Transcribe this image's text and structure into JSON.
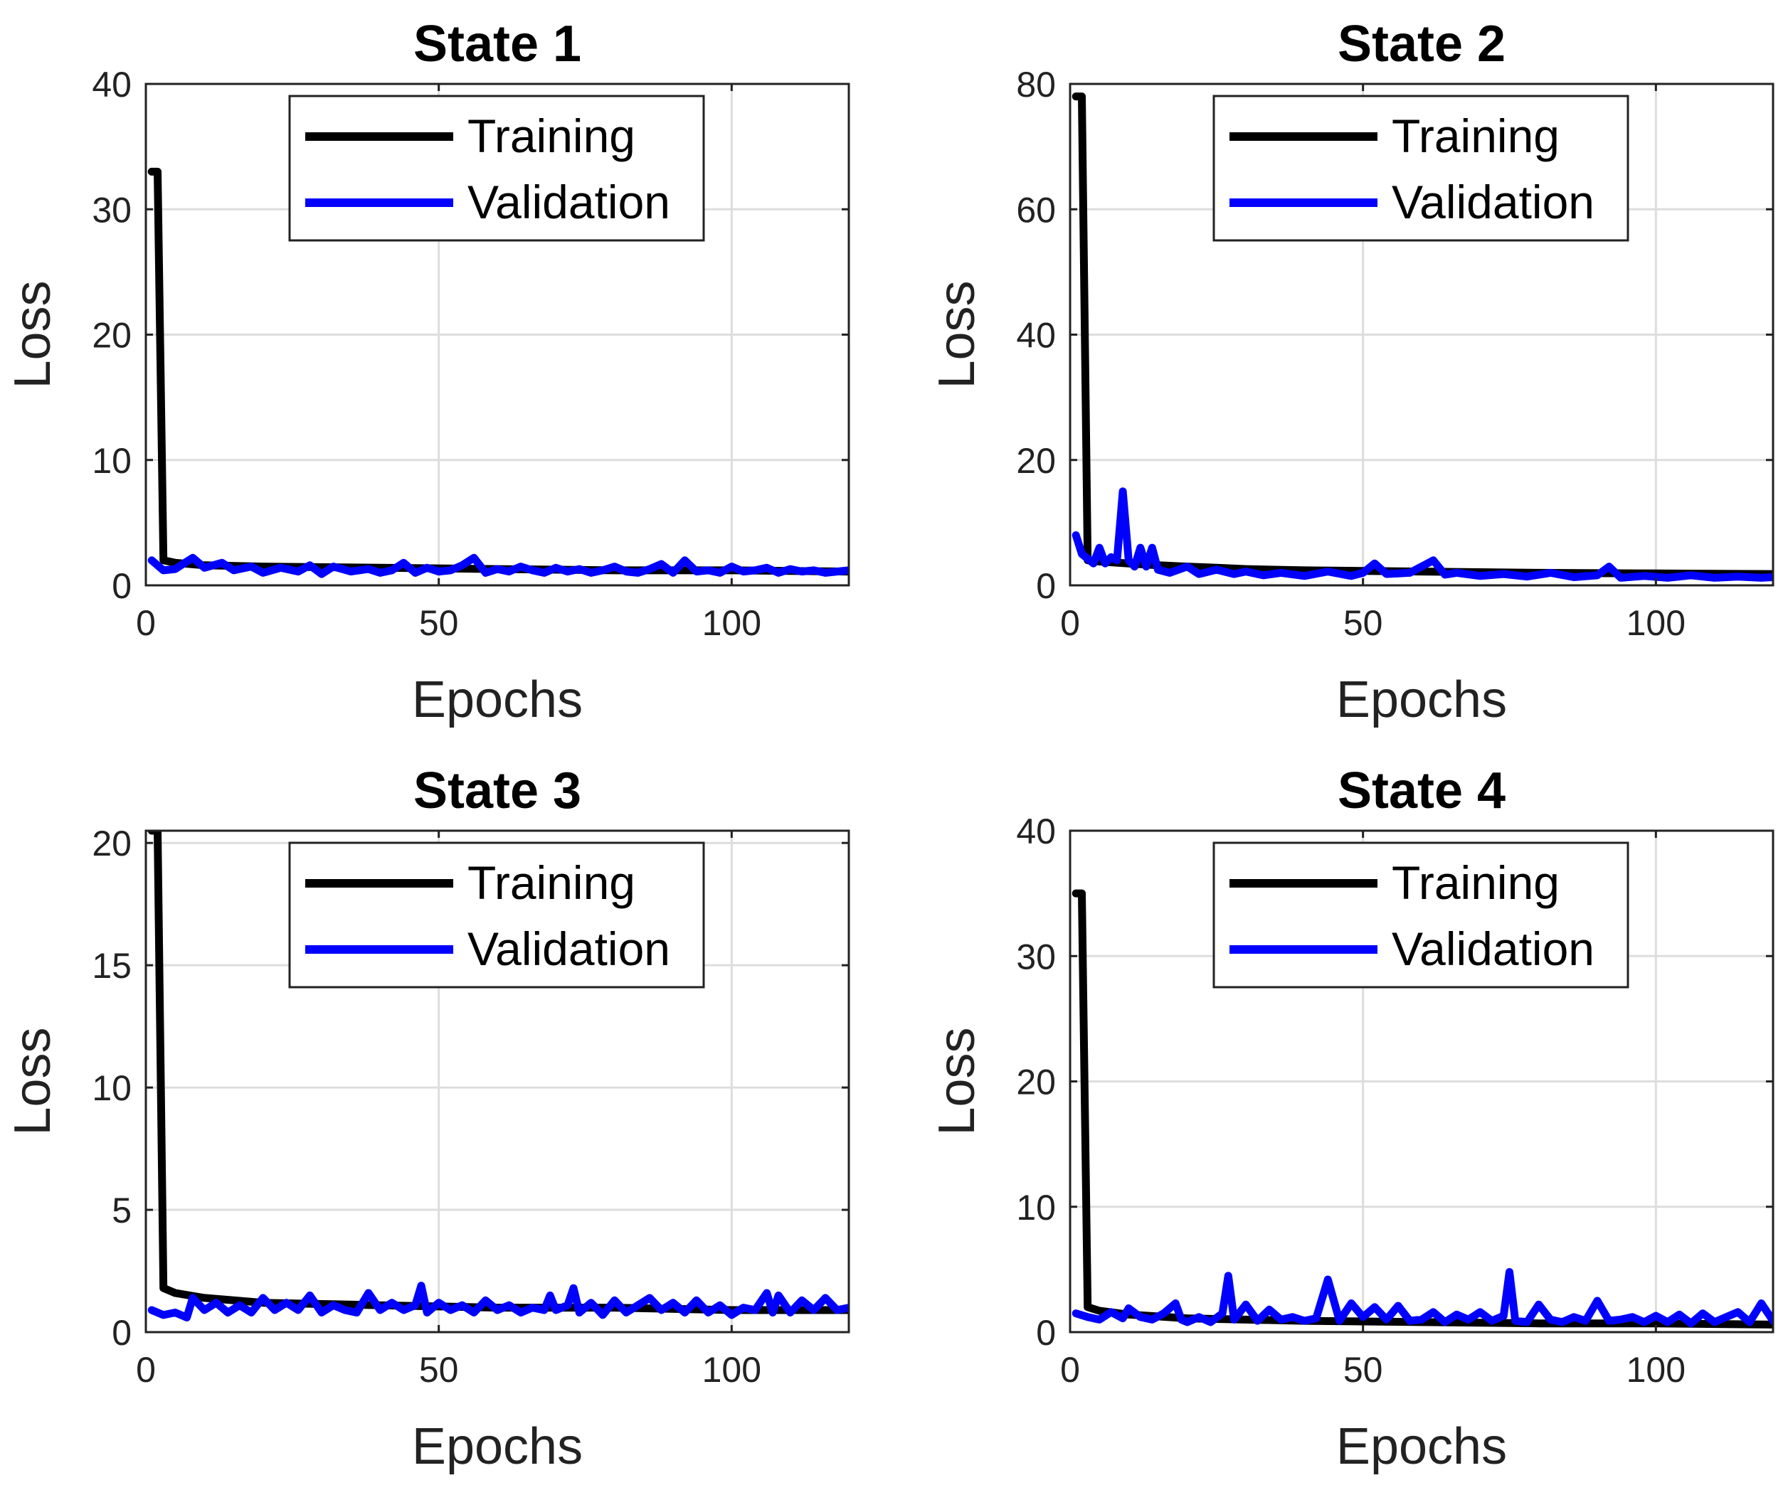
{
  "figure": {
    "xlabel": "Epochs",
    "ylabel": "Loss"
  },
  "colors": {
    "training": "#000000",
    "validation": "#0000ff",
    "grid": "#dddddd",
    "axis": "#222222"
  },
  "chart_data": [
    {
      "type": "line",
      "title": "State 1",
      "xlabel": "Epochs",
      "ylabel": "Loss",
      "xlim": [
        0,
        120
      ],
      "ylim": [
        0,
        40
      ],
      "xticks": [
        0,
        50,
        100
      ],
      "yticks": [
        0,
        10,
        20,
        30,
        40
      ],
      "grid": true,
      "legend": [
        "Training",
        "Validation"
      ],
      "legend_position": "top-right",
      "series": [
        {
          "name": "Training",
          "color": "#000000",
          "x": [
            1,
            2,
            3,
            5,
            10,
            20,
            40,
            60,
            80,
            100,
            120
          ],
          "y": [
            33,
            33,
            2.0,
            1.8,
            1.6,
            1.5,
            1.4,
            1.3,
            1.2,
            1.2,
            1.1
          ]
        },
        {
          "name": "Validation",
          "color": "#0000ff",
          "x": [
            1,
            3,
            5,
            8,
            10,
            13,
            15,
            18,
            20,
            23,
            26,
            28,
            30,
            32,
            35,
            38,
            40,
            42,
            44,
            46,
            48,
            50,
            52,
            54,
            56,
            58,
            60,
            62,
            64,
            66,
            68,
            70,
            72,
            74,
            76,
            78,
            80,
            82,
            84,
            86,
            88,
            90,
            92,
            94,
            96,
            98,
            100,
            102,
            104,
            106,
            108,
            110,
            112,
            114,
            116,
            118,
            120
          ],
          "y": [
            2.0,
            1.2,
            1.3,
            2.2,
            1.4,
            1.8,
            1.2,
            1.5,
            1.0,
            1.4,
            1.1,
            1.6,
            0.9,
            1.5,
            1.1,
            1.3,
            1.0,
            1.2,
            1.8,
            1.0,
            1.4,
            1.1,
            1.2,
            1.6,
            2.2,
            1.0,
            1.3,
            1.1,
            1.5,
            1.2,
            1.0,
            1.4,
            1.1,
            1.3,
            1.0,
            1.2,
            1.5,
            1.1,
            1.0,
            1.3,
            1.7,
            1.0,
            2.0,
            1.1,
            1.2,
            1.0,
            1.5,
            1.1,
            1.2,
            1.4,
            1.0,
            1.3,
            1.1,
            1.2,
            1.0,
            1.1,
            1.2
          ]
        }
      ]
    },
    {
      "type": "line",
      "title": "State 2",
      "xlabel": "Epochs",
      "ylabel": "Loss",
      "xlim": [
        0,
        120
      ],
      "ylim": [
        0,
        80
      ],
      "xticks": [
        0,
        50,
        100
      ],
      "yticks": [
        0,
        20,
        40,
        60,
        80
      ],
      "grid": true,
      "legend": [
        "Training",
        "Validation"
      ],
      "legend_position": "top-right",
      "series": [
        {
          "name": "Training",
          "color": "#000000",
          "x": [
            1,
            2,
            3,
            5,
            10,
            15,
            20,
            25,
            30,
            40,
            60,
            80,
            100,
            120
          ],
          "y": [
            78,
            78,
            4,
            3.8,
            3.5,
            3.2,
            3.0,
            2.8,
            2.6,
            2.4,
            2.2,
            2.0,
            1.9,
            1.8
          ]
        },
        {
          "name": "Validation",
          "color": "#0000ff",
          "x": [
            1,
            2,
            4,
            5,
            6,
            7,
            8,
            9,
            10,
            11,
            12,
            13,
            14,
            15,
            17,
            20,
            22,
            25,
            28,
            30,
            33,
            36,
            40,
            44,
            48,
            50,
            52,
            54,
            58,
            62,
            64,
            66,
            70,
            74,
            78,
            82,
            86,
            90,
            92,
            94,
            98,
            102,
            106,
            110,
            114,
            118,
            120
          ],
          "y": [
            8,
            5,
            3.5,
            6,
            3.5,
            4.5,
            4,
            15,
            4,
            3,
            6,
            3,
            6,
            2.5,
            2.0,
            3.0,
            1.8,
            2.5,
            1.8,
            2.2,
            1.6,
            2.0,
            1.5,
            2.2,
            1.5,
            2.0,
            3.5,
            1.8,
            2.0,
            4.0,
            1.7,
            2.0,
            1.5,
            1.8,
            1.4,
            2.0,
            1.3,
            1.6,
            3.0,
            1.2,
            1.5,
            1.2,
            1.6,
            1.2,
            1.4,
            1.2,
            1.3
          ]
        }
      ]
    },
    {
      "type": "line",
      "title": "State 3",
      "xlabel": "Epochs",
      "ylabel": "Loss",
      "xlim": [
        0,
        120
      ],
      "ylim": [
        0,
        20.5
      ],
      "xticks": [
        0,
        50,
        100
      ],
      "yticks": [
        0,
        5,
        10,
        15,
        20
      ],
      "grid": true,
      "legend": [
        "Training",
        "Validation"
      ],
      "legend_position": "top-right",
      "series": [
        {
          "name": "Training",
          "color": "#000000",
          "x": [
            1,
            2,
            3,
            5,
            10,
            20,
            40,
            60,
            80,
            100,
            120
          ],
          "y": [
            20.5,
            20.5,
            1.8,
            1.6,
            1.4,
            1.2,
            1.1,
            1.0,
            1.0,
            0.9,
            0.9
          ]
        },
        {
          "name": "Validation",
          "color": "#0000ff",
          "x": [
            1,
            3,
            5,
            7,
            8,
            10,
            12,
            14,
            16,
            18,
            20,
            22,
            24,
            26,
            28,
            30,
            32,
            34,
            36,
            38,
            40,
            42,
            44,
            46,
            47,
            48,
            50,
            52,
            54,
            56,
            58,
            60,
            62,
            64,
            66,
            68,
            69,
            70,
            72,
            73,
            74,
            76,
            78,
            80,
            82,
            84,
            86,
            88,
            90,
            92,
            94,
            96,
            98,
            100,
            102,
            104,
            106,
            107,
            108,
            110,
            112,
            114,
            116,
            118,
            120
          ],
          "y": [
            0.9,
            0.7,
            0.8,
            0.6,
            1.4,
            0.9,
            1.2,
            0.8,
            1.1,
            0.8,
            1.4,
            0.9,
            1.2,
            0.9,
            1.5,
            0.8,
            1.1,
            0.9,
            0.8,
            1.6,
            0.9,
            1.2,
            0.9,
            1.1,
            1.9,
            0.8,
            1.2,
            0.9,
            1.1,
            0.8,
            1.3,
            0.9,
            1.1,
            0.8,
            1.0,
            0.9,
            1.5,
            0.9,
            1.1,
            1.8,
            0.8,
            1.2,
            0.7,
            1.3,
            0.8,
            1.1,
            1.4,
            0.9,
            1.2,
            0.8,
            1.3,
            0.8,
            1.1,
            0.7,
            1.0,
            0.9,
            1.6,
            0.8,
            1.5,
            0.8,
            1.3,
            0.9,
            1.4,
            0.9,
            1.0
          ]
        }
      ]
    },
    {
      "type": "line",
      "title": "State 4",
      "xlabel": "Epochs",
      "ylabel": "Loss",
      "xlim": [
        0,
        120
      ],
      "ylim": [
        0,
        40
      ],
      "xticks": [
        0,
        50,
        100
      ],
      "yticks": [
        0,
        10,
        20,
        30,
        40
      ],
      "grid": true,
      "legend": [
        "Training",
        "Validation"
      ],
      "legend_position": "top-right",
      "series": [
        {
          "name": "Training",
          "color": "#000000",
          "x": [
            1,
            2,
            3,
            5,
            10,
            20,
            40,
            60,
            80,
            100,
            120
          ],
          "y": [
            35,
            35,
            2.0,
            1.7,
            1.4,
            1.1,
            0.9,
            0.8,
            0.7,
            0.7,
            0.6
          ]
        },
        {
          "name": "Validation",
          "color": "#0000ff",
          "x": [
            1,
            3,
            5,
            7,
            9,
            10,
            12,
            14,
            16,
            18,
            19,
            20,
            22,
            24,
            26,
            27,
            28,
            30,
            32,
            34,
            36,
            38,
            40,
            42,
            44,
            46,
            48,
            50,
            52,
            54,
            56,
            58,
            60,
            62,
            64,
            66,
            68,
            70,
            72,
            74,
            75,
            76,
            78,
            80,
            82,
            84,
            86,
            88,
            90,
            92,
            94,
            96,
            98,
            100,
            102,
            104,
            106,
            108,
            110,
            112,
            114,
            116,
            118,
            120
          ],
          "y": [
            1.5,
            1.2,
            1.0,
            1.6,
            1.1,
            1.9,
            1.2,
            1.0,
            1.5,
            2.3,
            1.0,
            0.8,
            1.2,
            0.8,
            1.5,
            4.5,
            1.0,
            2.2,
            0.9,
            1.8,
            1.0,
            1.2,
            0.9,
            1.1,
            4.2,
            0.9,
            2.3,
            1.2,
            2.0,
            1.0,
            2.1,
            0.9,
            1.0,
            1.6,
            0.8,
            1.4,
            1.0,
            1.6,
            0.9,
            1.3,
            4.8,
            0.9,
            0.8,
            2.2,
            1.0,
            0.8,
            1.2,
            0.9,
            2.5,
            0.9,
            1.0,
            1.2,
            0.8,
            1.3,
            0.8,
            1.4,
            0.7,
            1.5,
            0.8,
            1.2,
            1.6,
            0.8,
            2.3,
            0.9
          ]
        }
      ]
    }
  ]
}
